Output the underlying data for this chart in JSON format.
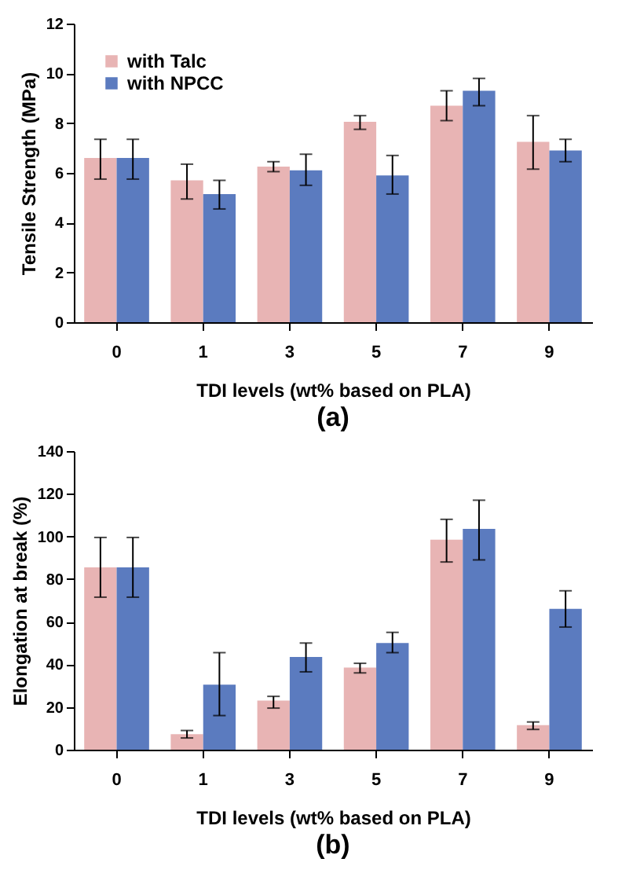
{
  "chart_data": [
    {
      "type": "bar",
      "title": "(a)",
      "xlabel": "TDI levels (wt% based on PLA)",
      "ylabel": "Tensile  Strength (MPa)",
      "categories": [
        "0",
        "1",
        "3",
        "5",
        "7",
        "9"
      ],
      "ylim": [
        0,
        12
      ],
      "yticks": [
        0,
        2,
        4,
        6,
        8,
        10,
        12
      ],
      "grid": false,
      "legend": "top left",
      "series": [
        {
          "name": "with Talc",
          "color": "#e8b4b4",
          "values": [
            6.6,
            5.7,
            6.25,
            8.05,
            8.7,
            7.25
          ],
          "errors": [
            [
              5.75,
              7.35
            ],
            [
              4.95,
              6.35
            ],
            [
              6.05,
              6.45
            ],
            [
              7.75,
              8.3
            ],
            [
              8.1,
              9.3
            ],
            [
              6.15,
              8.3
            ]
          ]
        },
        {
          "name": "with NPCC",
          "color": "#5b7bbf",
          "values": [
            6.6,
            5.15,
            6.1,
            5.9,
            9.3,
            6.9
          ],
          "errors": [
            [
              5.75,
              7.35
            ],
            [
              4.55,
              5.7
            ],
            [
              5.5,
              6.75
            ],
            [
              5.15,
              6.7
            ],
            [
              8.7,
              9.8
            ],
            [
              6.45,
              7.35
            ]
          ]
        }
      ]
    },
    {
      "type": "bar",
      "title": "(b)",
      "xlabel": "TDI levels (wt% based on PLA)",
      "ylabel": "Elongation at break (%)",
      "categories": [
        "0",
        "1",
        "3",
        "5",
        "7",
        "9"
      ],
      "ylim": [
        0,
        140
      ],
      "yticks": [
        0,
        20,
        40,
        60,
        80,
        100,
        120,
        140
      ],
      "grid": false,
      "legend": "top left",
      "series": [
        {
          "name": "with Talc",
          "color": "#e8b4b4",
          "values": [
            85.5,
            7.3,
            23,
            38.5,
            98.5,
            11.5
          ],
          "errors": [
            [
              71.5,
              99.5
            ],
            [
              5.5,
              9
            ],
            [
              19.5,
              25
            ],
            [
              36,
              40.5
            ],
            [
              88,
              108
            ],
            [
              9.5,
              13
            ]
          ]
        },
        {
          "name": "with NPCC",
          "color": "#5b7bbf",
          "values": [
            85.5,
            30.5,
            43.5,
            50,
            103.5,
            66
          ],
          "errors": [
            [
              71.5,
              99.5
            ],
            [
              16,
              45.5
            ],
            [
              36.5,
              50
            ],
            [
              45.5,
              55
            ],
            [
              89,
              117
            ],
            [
              57.5,
              74.5
            ]
          ]
        }
      ]
    }
  ]
}
